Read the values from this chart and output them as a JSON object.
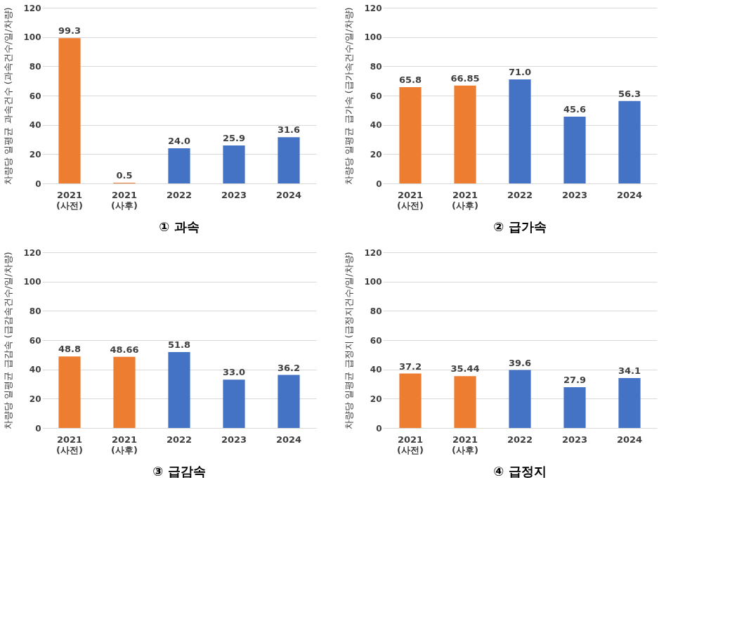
{
  "chart_data": [
    {
      "type": "bar",
      "title": "① 과속",
      "ylabel": "차량당 일평균 과속건수 (과속건수/일/차량)",
      "categories": [
        "2021 (사전)",
        "2021 (사후)",
        "2022",
        "2023",
        "2024"
      ],
      "values": [
        99.3,
        0.5,
        24.0,
        25.9,
        31.6
      ],
      "value_labels": [
        "99.3",
        "0.5",
        "24.0",
        "25.9",
        "31.6"
      ],
      "colors": [
        "#ed7d31",
        "#ed7d31",
        "#4472c4",
        "#4472c4",
        "#4472c4"
      ],
      "ylim": [
        0,
        120
      ],
      "yticks": [
        0,
        20,
        40,
        60,
        80,
        100,
        120
      ],
      "grid": "y"
    },
    {
      "type": "bar",
      "title": "② 급가속",
      "ylabel": "차량당 일평균 급가속 (급가속건수/일/차량)",
      "categories": [
        "2021 (사전)",
        "2021 (사후)",
        "2022",
        "2023",
        "2024"
      ],
      "values": [
        65.8,
        66.85,
        71.0,
        45.6,
        56.3
      ],
      "value_labels": [
        "65.8",
        "66.85",
        "71.0",
        "45.6",
        "56.3"
      ],
      "colors": [
        "#ed7d31",
        "#ed7d31",
        "#4472c4",
        "#4472c4",
        "#4472c4"
      ],
      "ylim": [
        0,
        120
      ],
      "yticks": [
        0,
        20,
        40,
        60,
        80,
        100,
        120
      ],
      "grid": "y"
    },
    {
      "type": "bar",
      "title": "③ 급감속",
      "ylabel": "차량당 일평균 급감속 (급감속건수/일/차량)",
      "categories": [
        "2021 (사전)",
        "2021 (사후)",
        "2022",
        "2023",
        "2024"
      ],
      "values": [
        48.8,
        48.66,
        51.8,
        33.0,
        36.2
      ],
      "value_labels": [
        "48.8",
        "48.66",
        "51.8",
        "33.0",
        "36.2"
      ],
      "colors": [
        "#ed7d31",
        "#ed7d31",
        "#4472c4",
        "#4472c4",
        "#4472c4"
      ],
      "ylim": [
        0,
        120
      ],
      "yticks": [
        0,
        20,
        40,
        60,
        80,
        100,
        120
      ],
      "grid": "y"
    },
    {
      "type": "bar",
      "title": "④ 급정지",
      "ylabel": "차량당 일평균 급정지 (급정지건수/일/차량)",
      "categories": [
        "2021 (사전)",
        "2021 (사후)",
        "2022",
        "2023",
        "2024"
      ],
      "values": [
        37.2,
        35.44,
        39.6,
        27.9,
        34.1
      ],
      "value_labels": [
        "37.2",
        "35.44",
        "39.6",
        "27.9",
        "34.1"
      ],
      "colors": [
        "#ed7d31",
        "#ed7d31",
        "#4472c4",
        "#4472c4",
        "#4472c4"
      ],
      "ylim": [
        0,
        120
      ],
      "yticks": [
        0,
        20,
        40,
        60,
        80,
        100,
        120
      ],
      "grid": "y"
    }
  ]
}
